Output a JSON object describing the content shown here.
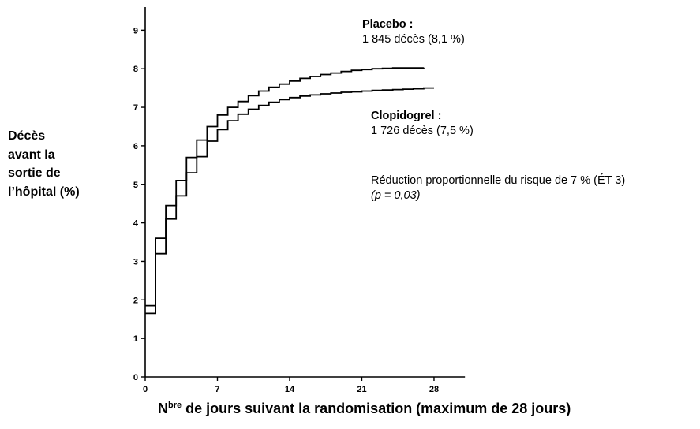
{
  "chart_data": {
    "type": "line",
    "ylabel_lines": [
      "Décès",
      "avant la",
      "sortie de",
      "l’hôpital (%)"
    ],
    "xlabel": {
      "prefix": "N",
      "sup": "bre",
      "rest": " de jours suivant la randomisation (maximum de 28 jours)"
    },
    "xlim": [
      0,
      31
    ],
    "ylim": [
      0,
      9.6
    ],
    "xticks": [
      0,
      7,
      14,
      21,
      28
    ],
    "yticks": [
      0,
      1,
      2,
      3,
      4,
      5,
      6,
      7,
      8,
      9
    ],
    "series": [
      {
        "name": "Placebo",
        "x": [
          0,
          1,
          2,
          3,
          4,
          5,
          6,
          7,
          8,
          9,
          10,
          11,
          12,
          13,
          14,
          15,
          16,
          17,
          18,
          19,
          20,
          21,
          22,
          23,
          24,
          25,
          26,
          27
        ],
        "y": [
          1.85,
          3.6,
          4.45,
          5.1,
          5.7,
          6.15,
          6.5,
          6.8,
          7.0,
          7.15,
          7.3,
          7.42,
          7.52,
          7.6,
          7.68,
          7.75,
          7.8,
          7.85,
          7.89,
          7.93,
          7.96,
          7.98,
          8.0,
          8.01,
          8.02,
          8.02,
          8.02,
          8.03
        ]
      },
      {
        "name": "Clopidogrel",
        "x": [
          0,
          1,
          2,
          3,
          4,
          5,
          6,
          7,
          8,
          9,
          10,
          11,
          12,
          13,
          14,
          15,
          16,
          17,
          18,
          19,
          20,
          21,
          22,
          23,
          24,
          25,
          26,
          27,
          28
        ],
        "y": [
          1.65,
          3.2,
          4.1,
          4.7,
          5.3,
          5.72,
          6.12,
          6.42,
          6.65,
          6.82,
          6.95,
          7.05,
          7.13,
          7.2,
          7.25,
          7.29,
          7.32,
          7.35,
          7.37,
          7.39,
          7.4,
          7.42,
          7.44,
          7.45,
          7.46,
          7.47,
          7.48,
          7.5,
          7.5
        ]
      }
    ],
    "annotations": {
      "placebo_title": "Placebo :",
      "placebo_value": "1 845 décès (8,1 %)",
      "clopidogrel_title": "Clopidogrel :",
      "clopidogrel_value": "1 726 décès (7,5 %)",
      "risk_reduction": "Réduction proportionnelle du risque de 7 % (ÉT 3)",
      "p_value": "(p = 0,03)"
    }
  }
}
